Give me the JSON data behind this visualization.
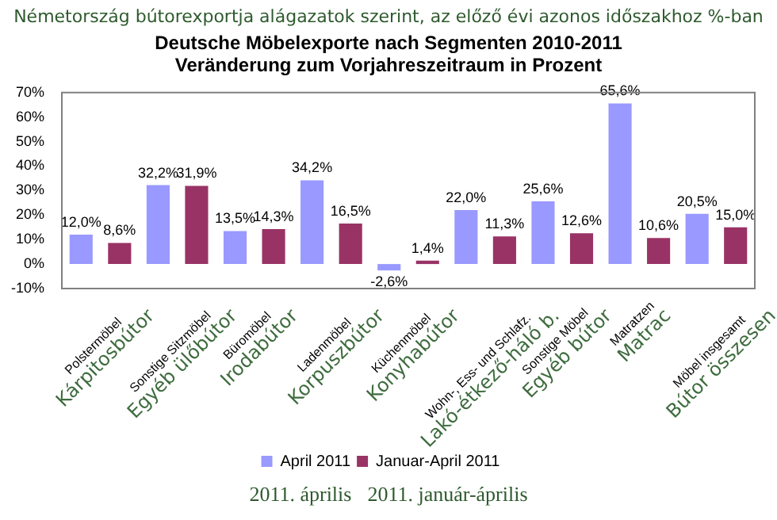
{
  "chart_data": {
    "type": "bar",
    "subtitle": "Németország bútorexportja alágazatok szerint, az előző évi azonos időszakhoz %-ban",
    "title": "Deutsche Möbelexporte nach Segmenten 2010-2011\nVeränderung zum Vorjahreszeitraum in Prozent",
    "categories": [
      "Polstermöbel\nKárpitosbútor",
      "Sonstige Sitzmöbel\nEgyéb ülőbútor",
      "Büromöbel\nIrodabútor",
      "Ladenmöbel\nKorpuszbútor",
      "Küchenmöbel\nKonyhabútor",
      "Wohn-, Ess- und Schlafz.\nLakó-étkező-háló b.",
      "Sonstige Möbel\nEgyéb bútor",
      "Matratzen\nMatrac",
      "Möbel insgesamt\nBútor összesen"
    ],
    "series": [
      {
        "name": "April 2011",
        "color": "#9999ff",
        "values": [
          12.0,
          32.2,
          13.5,
          34.2,
          -2.6,
          22.0,
          25.6,
          65.6,
          20.5
        ],
        "value_labels": [
          "12,0%",
          "32,2%",
          "13,5%",
          "34,2%",
          "-2,6%",
          "22,0%",
          "25,6%",
          "65,6%",
          "20,5%"
        ]
      },
      {
        "name": "Januar-April 2011",
        "color": "#993366",
        "values": [
          8.6,
          31.9,
          14.3,
          16.5,
          1.4,
          11.3,
          12.6,
          10.6,
          15.0
        ],
        "value_labels": [
          "8,6%",
          "31,9%",
          "14,3%",
          "16,5%",
          "1,4%",
          "11,3%",
          "12,6%",
          "10,6%",
          "15,0%"
        ]
      }
    ],
    "ylim": [
      -10,
      70
    ],
    "yticks": [
      {
        "value": -10,
        "label": "-10%"
      },
      {
        "value": 0,
        "label": "0%"
      },
      {
        "value": 10,
        "label": "10%"
      },
      {
        "value": 20,
        "label": "20%"
      },
      {
        "value": 30,
        "label": "30%"
      },
      {
        "value": 40,
        "label": "40%"
      },
      {
        "value": 50,
        "label": "50%"
      },
      {
        "value": 60,
        "label": "60%"
      },
      {
        "value": 70,
        "label": "70%"
      }
    ],
    "grid": false,
    "legend": "bottom",
    "annotations": [
      "2011. április",
      "2011. január-április"
    ]
  }
}
